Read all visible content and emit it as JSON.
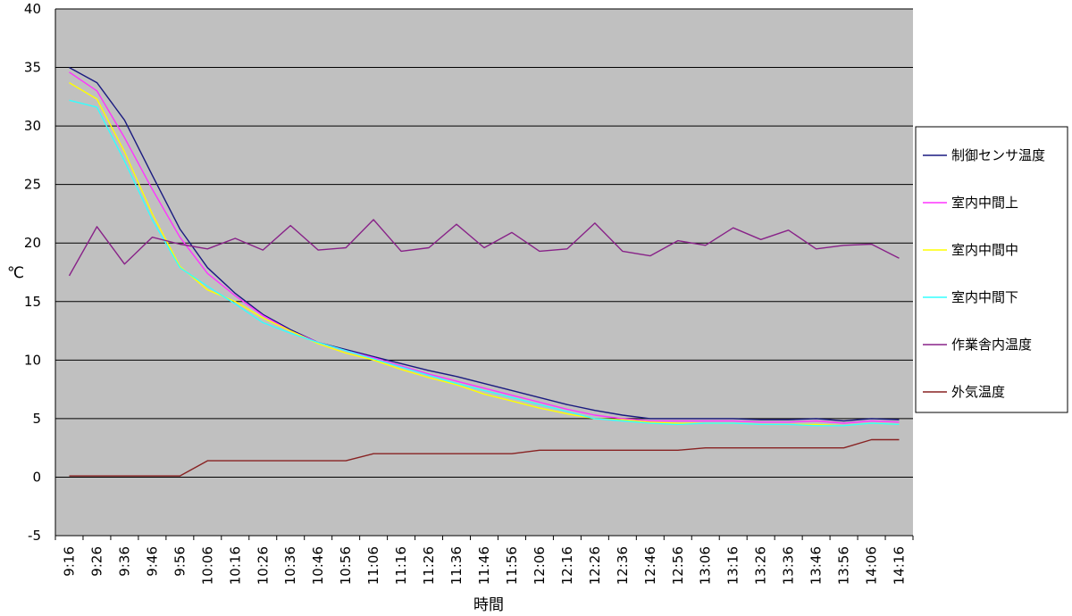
{
  "chart_data": {
    "type": "line",
    "title": "",
    "xlabel": "時間",
    "ylabel": "℃",
    "ylim": [
      -5,
      40
    ],
    "yticks": [
      40,
      35,
      30,
      25,
      20,
      15,
      10,
      5,
      0,
      -5
    ],
    "grid": true,
    "legend_position": "right",
    "categories": [
      "9:16",
      "9:26",
      "9:36",
      "9:46",
      "9:56",
      "10:06",
      "10:16",
      "10:26",
      "10:36",
      "10:46",
      "10:56",
      "11:06",
      "11:16",
      "11:26",
      "11:36",
      "11:46",
      "11:56",
      "12:06",
      "12:16",
      "12:26",
      "12:36",
      "12:46",
      "12:56",
      "13:06",
      "13:16",
      "13:26",
      "13:36",
      "13:46",
      "13:56",
      "14:06",
      "14:16"
    ],
    "series": [
      {
        "name": "制御センサ温度",
        "color": "#1a1a80",
        "values": [
          35.0,
          33.7,
          30.5,
          25.8,
          21.2,
          17.9,
          15.7,
          13.9,
          12.6,
          11.5,
          10.9,
          10.3,
          9.7,
          9.1,
          8.6,
          8.0,
          7.4,
          6.8,
          6.2,
          5.7,
          5.3,
          5.0,
          5.0,
          5.0,
          5.0,
          4.9,
          4.9,
          5.0,
          4.8,
          5.0,
          4.9
        ]
      },
      {
        "name": "室内中間上",
        "color": "#ff33ff",
        "values": [
          34.6,
          33.0,
          29.0,
          24.6,
          20.5,
          17.4,
          15.5,
          13.8,
          12.5,
          11.5,
          10.8,
          10.2,
          9.5,
          8.8,
          8.2,
          7.6,
          7.0,
          6.4,
          5.8,
          5.3,
          5.0,
          4.8,
          4.8,
          4.8,
          4.8,
          4.7,
          4.7,
          4.8,
          4.6,
          4.8,
          4.7
        ]
      },
      {
        "name": "室内中間中",
        "color": "#ffff00",
        "values": [
          33.7,
          32.3,
          27.8,
          22.5,
          18.0,
          16.0,
          15.0,
          13.6,
          12.5,
          11.4,
          10.6,
          10.0,
          9.2,
          8.5,
          7.9,
          7.1,
          6.5,
          5.9,
          5.4,
          5.0,
          4.9,
          4.7,
          4.6,
          4.6,
          4.6,
          4.5,
          4.5,
          4.5,
          4.4,
          4.6,
          4.5
        ]
      },
      {
        "name": "室内中間下",
        "color": "#33ffff",
        "values": [
          32.2,
          31.6,
          27.0,
          22.0,
          17.9,
          16.3,
          14.8,
          13.2,
          12.3,
          11.5,
          10.8,
          10.1,
          9.4,
          8.7,
          8.0,
          7.4,
          6.8,
          6.2,
          5.6,
          5.0,
          4.8,
          4.6,
          4.5,
          4.6,
          4.6,
          4.5,
          4.5,
          4.4,
          4.4,
          4.6,
          4.5
        ]
      },
      {
        "name": "作業舎内温度",
        "color": "#882288",
        "values": [
          17.2,
          21.4,
          18.2,
          20.5,
          19.9,
          19.5,
          20.4,
          19.4,
          21.5,
          19.4,
          19.6,
          22.0,
          19.3,
          19.6,
          21.6,
          19.6,
          20.9,
          19.3,
          19.5,
          21.7,
          19.3,
          18.9,
          20.2,
          19.8,
          21.3,
          20.3,
          21.1,
          19.5,
          19.8,
          19.9,
          18.7
        ]
      },
      {
        "name": "外気温度",
        "color": "#882222",
        "values": [
          0.1,
          0.1,
          0.1,
          0.1,
          0.1,
          1.4,
          1.4,
          1.4,
          1.4,
          1.4,
          1.4,
          2.0,
          2.0,
          2.0,
          2.0,
          2.0,
          2.0,
          2.3,
          2.3,
          2.3,
          2.3,
          2.3,
          2.3,
          2.5,
          2.5,
          2.5,
          2.5,
          2.5,
          2.5,
          3.2,
          3.2
        ]
      }
    ]
  }
}
